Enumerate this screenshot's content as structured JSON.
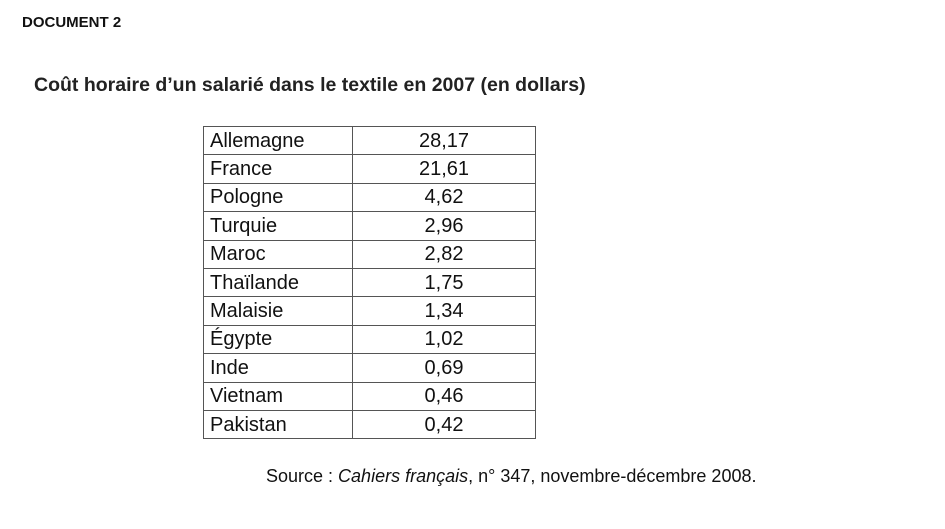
{
  "header": {
    "label": "DOCUMENT 2",
    "title": "Coût horaire d’un salarié dans le textile en 2007 (en dollars)"
  },
  "table": {
    "rows": [
      [
        "Allemagne",
        "28,17"
      ],
      [
        "France",
        "21,61"
      ],
      [
        "Pologne",
        "4,62"
      ],
      [
        "Turquie",
        "2,96"
      ],
      [
        "Maroc",
        "2,82"
      ],
      [
        "Thaïlande",
        "1,75"
      ],
      [
        "Malaisie",
        "1,34"
      ],
      [
        "Égypte",
        "1,02"
      ],
      [
        "Inde",
        "0,69"
      ],
      [
        "Vietnam",
        "0,46"
      ],
      [
        "Pakistan",
        "0,42"
      ]
    ]
  },
  "source": {
    "prefix": "Source : ",
    "publication": "Cahiers français",
    "details": ", n° 347, novembre-décembre 2008."
  }
}
